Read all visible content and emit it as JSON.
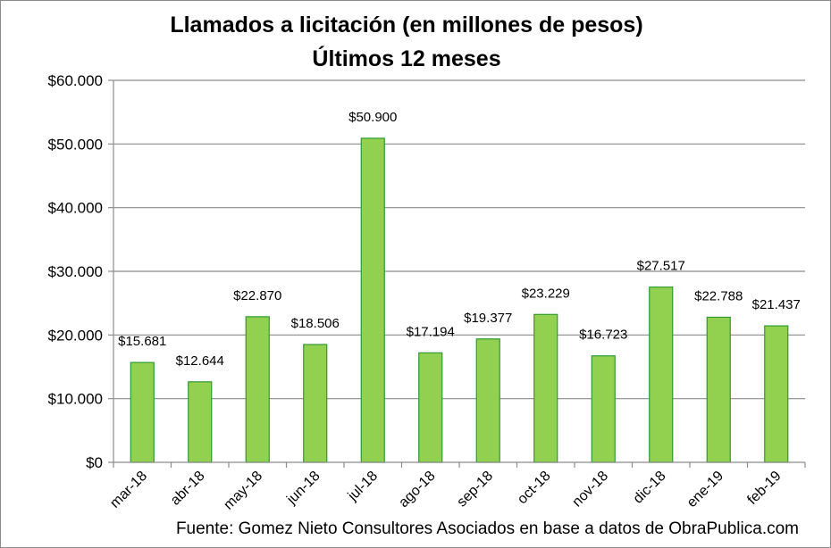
{
  "chart_data": {
    "type": "bar",
    "title": "Llamados a licitación (en millones de pesos)",
    "subtitle": "Últimos 12 meses",
    "categories": [
      "mar-18",
      "abr-18",
      "may-18",
      "jun-18",
      "jul-18",
      "ago-18",
      "sep-18",
      "oct-18",
      "nov-18",
      "dic-18",
      "ene-19",
      "feb-19"
    ],
    "values": [
      15681,
      12644,
      22870,
      18506,
      50900,
      17194,
      19377,
      23229,
      16723,
      27517,
      22788,
      21437
    ],
    "data_labels": [
      "$15.681",
      "$12.644",
      "$22.870",
      "$18.506",
      "$50.900",
      "$17.194",
      "$19.377",
      "$23.229",
      "$16.723",
      "$27.517",
      "$22.788",
      "$21.437"
    ],
    "ylim": [
      0,
      60000
    ],
    "yticks": [
      0,
      10000,
      20000,
      30000,
      40000,
      50000,
      60000
    ],
    "ytick_labels": [
      "$0",
      "$10.000",
      "$20.000",
      "$30.000",
      "$40.000",
      "$50.000",
      "$60.000"
    ],
    "xlabel": "",
    "ylabel": "",
    "grid": true,
    "bar_color": "#92d050",
    "bar_edge_color": "#339933",
    "source": "Fuente: Gomez Nieto Consultores Asociados en base a datos de ObraPublica.com"
  }
}
